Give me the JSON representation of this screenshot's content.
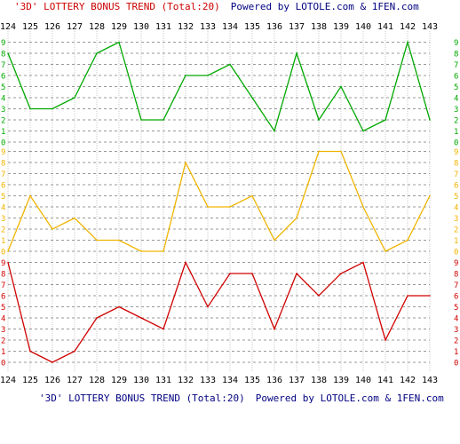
{
  "title_top": "'3D' LOTTERY BONUS TREND (Total:20)",
  "powered_top": "Powered by LOTOLE.com & 1FEN.com",
  "title_bottom": "'3D' LOTTERY BONUS TREND (Total:20)",
  "powered_bottom": "Powered by LOTOLE.com & 1FEN.com",
  "colors": {
    "title": "#cc0000",
    "powered": "#000080",
    "tick": "#000000",
    "grid": "#999999",
    "vgrid": "#cccccc",
    "green": "#00a800",
    "orange": "#f0b400",
    "red": "#d00000"
  },
  "chart_data": {
    "type": "line",
    "title": "'3D' LOTTERY BONUS TREND (Total:20)",
    "categories": [
      "124",
      "125",
      "126",
      "127",
      "128",
      "129",
      "130",
      "131",
      "132",
      "133",
      "134",
      "135",
      "136",
      "137",
      "138",
      "139",
      "140",
      "141",
      "142",
      "143"
    ],
    "ylim": [
      0,
      9
    ],
    "y_ticks": [
      "0",
      "1",
      "2",
      "3",
      "4",
      "5",
      "6",
      "7",
      "8",
      "9"
    ],
    "grid": true,
    "bands": [
      {
        "color": "green",
        "values": [
          8,
          3,
          3,
          4,
          8,
          9,
          2,
          2,
          6,
          6,
          7,
          4,
          1,
          8,
          2,
          5,
          1,
          2,
          9,
          2
        ]
      },
      {
        "color": "orange",
        "values": [
          0,
          5,
          2,
          3,
          1,
          1,
          0,
          0,
          8,
          4,
          4,
          5,
          1,
          3,
          9,
          9,
          4,
          0,
          1,
          5
        ]
      },
      {
        "color": "red",
        "values": [
          9,
          1,
          0,
          1,
          4,
          5,
          4,
          3,
          9,
          5,
          8,
          8,
          3,
          8,
          6,
          8,
          9,
          2,
          6,
          6
        ]
      }
    ]
  }
}
